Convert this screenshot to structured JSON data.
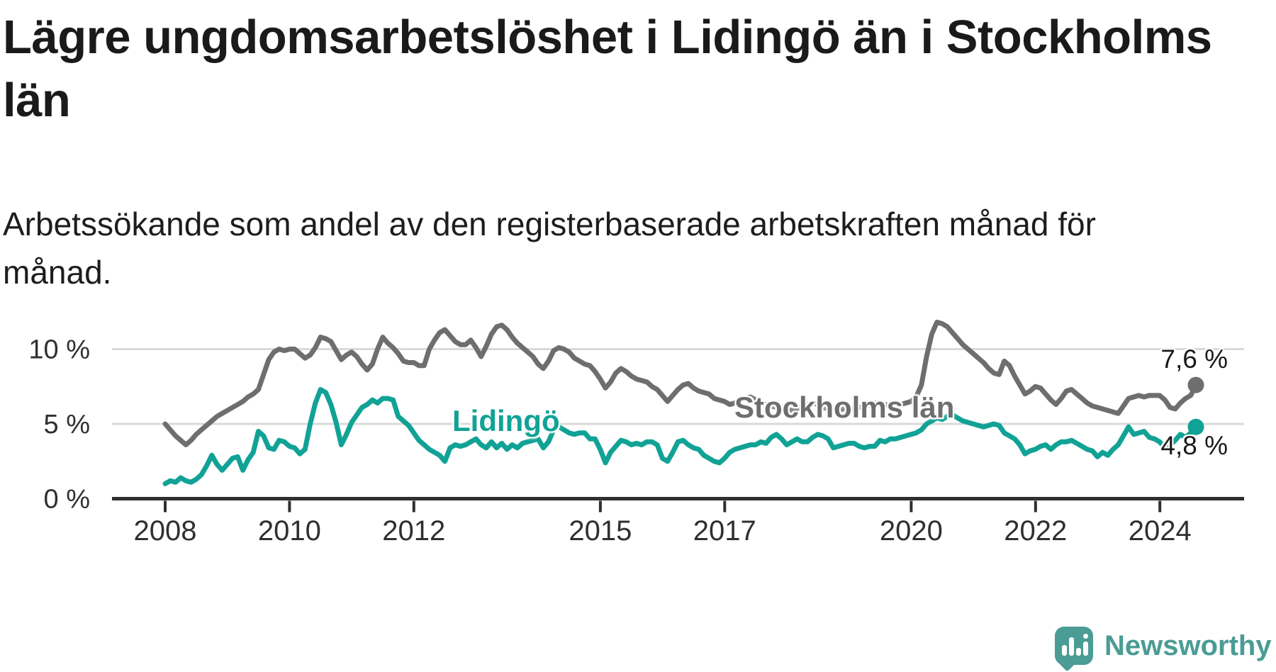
{
  "header": {
    "title": "Lägre ungdomsarbetslöshet i Lidingö än i Stockholms län",
    "subtitle": "Arbetssökande som andel av den registerbaserade arbetskraften månad för månad."
  },
  "chart_data": {
    "type": "line",
    "title": "Lägre ungdomsarbetslöshet i Lidingö än i Stockholms län",
    "subtitle": "Arbetssökande som andel av den registerbaserade arbetskraften månad för månad.",
    "x_unit": "month",
    "x_range": [
      "2008-01",
      "2024-08"
    ],
    "ylim": [
      0,
      12.5
    ],
    "grid": "horizontal",
    "legend": "inline-labels",
    "y_tick_values": [
      0,
      5,
      10
    ],
    "y_tick_labels": [
      "0 %",
      "5 %",
      "10 %"
    ],
    "x_tick_years": [
      2008,
      2010,
      2012,
      2015,
      2017,
      2020,
      2022,
      2024
    ],
    "series": [
      {
        "name": "Stockholms län",
        "color": "#6e6e6e",
        "end_label": "7,6 %",
        "end_value": 7.6,
        "values": [
          5.0,
          4.6,
          4.2,
          3.9,
          3.6,
          3.9,
          4.3,
          4.6,
          4.9,
          5.2,
          5.5,
          5.7,
          5.9,
          6.1,
          6.3,
          6.5,
          6.8,
          7.0,
          7.3,
          8.3,
          9.3,
          9.8,
          10.0,
          9.9,
          10.0,
          10.0,
          9.7,
          9.4,
          9.6,
          10.1,
          10.8,
          10.7,
          10.5,
          9.9,
          9.3,
          9.6,
          9.8,
          9.5,
          9.0,
          8.6,
          9.0,
          10.0,
          10.8,
          10.4,
          10.1,
          9.7,
          9.2,
          9.1,
          9.1,
          8.9,
          8.9,
          10.0,
          10.6,
          11.1,
          11.3,
          10.9,
          10.5,
          10.3,
          10.3,
          10.6,
          10.1,
          9.5,
          10.2,
          11.0,
          11.5,
          11.6,
          11.3,
          10.8,
          10.4,
          10.1,
          9.8,
          9.5,
          9.0,
          8.7,
          9.2,
          9.9,
          10.1,
          10.0,
          9.8,
          9.4,
          9.2,
          9.0,
          8.9,
          8.5,
          8.0,
          7.4,
          7.8,
          8.4,
          8.7,
          8.5,
          8.2,
          8.0,
          7.9,
          7.8,
          7.5,
          7.3,
          6.9,
          6.5,
          6.9,
          7.3,
          7.6,
          7.7,
          7.4,
          7.2,
          7.1,
          7.0,
          6.7,
          6.6,
          6.5,
          6.3,
          6.4,
          6.6,
          6.7,
          6.8,
          6.6,
          6.4,
          6.3,
          6.2,
          6.1,
          6.1,
          6.0,
          5.9,
          6.0,
          6.2,
          6.3,
          6.4,
          6.3,
          6.1,
          6.0,
          5.9,
          5.9,
          6.0,
          6.0,
          6.0,
          6.1,
          6.2,
          6.3,
          6.4,
          6.4,
          6.3,
          6.2,
          6.2,
          6.3,
          6.4,
          6.5,
          6.8,
          7.6,
          9.5,
          11.0,
          11.8,
          11.7,
          11.5,
          11.1,
          10.7,
          10.3,
          10.0,
          9.7,
          9.4,
          9.1,
          8.7,
          8.4,
          8.3,
          9.2,
          8.9,
          8.2,
          7.6,
          7.0,
          7.2,
          7.5,
          7.4,
          7.0,
          6.6,
          6.3,
          6.7,
          7.2,
          7.3,
          7.0,
          6.7,
          6.4,
          6.2,
          6.1,
          6.0,
          5.9,
          5.8,
          5.7,
          6.2,
          6.7,
          6.8,
          6.9,
          6.8,
          6.9,
          6.9,
          6.9,
          6.6,
          6.1,
          6.0,
          6.4,
          6.7,
          6.9,
          7.6
        ]
      },
      {
        "name": "Lidingö",
        "color": "#11a296",
        "end_label": "4,8 %",
        "end_value": 4.8,
        "values": [
          1.0,
          1.2,
          1.1,
          1.4,
          1.2,
          1.1,
          1.3,
          1.6,
          2.2,
          2.9,
          2.3,
          1.9,
          2.3,
          2.7,
          2.8,
          1.9,
          2.6,
          3.1,
          4.5,
          4.2,
          3.4,
          3.3,
          3.9,
          3.8,
          3.5,
          3.4,
          3.0,
          3.3,
          5.0,
          6.4,
          7.3,
          7.1,
          6.3,
          5.1,
          3.6,
          4.3,
          5.1,
          5.6,
          6.1,
          6.3,
          6.6,
          6.4,
          6.7,
          6.7,
          6.6,
          5.5,
          5.2,
          4.9,
          4.4,
          3.9,
          3.6,
          3.3,
          3.1,
          2.9,
          2.5,
          3.4,
          3.6,
          3.5,
          3.6,
          3.8,
          4.0,
          3.6,
          3.4,
          3.8,
          3.4,
          3.7,
          3.3,
          3.6,
          3.4,
          3.7,
          3.8,
          3.9,
          4.0,
          3.4,
          3.8,
          4.6,
          4.8,
          4.6,
          4.4,
          4.3,
          4.4,
          4.4,
          4.0,
          4.0,
          3.3,
          2.4,
          3.1,
          3.5,
          3.9,
          3.8,
          3.6,
          3.7,
          3.6,
          3.8,
          3.8,
          3.6,
          2.7,
          2.5,
          3.1,
          3.8,
          3.9,
          3.6,
          3.4,
          3.3,
          2.9,
          2.7,
          2.5,
          2.4,
          2.7,
          3.1,
          3.3,
          3.4,
          3.5,
          3.6,
          3.6,
          3.8,
          3.7,
          4.1,
          4.3,
          4.0,
          3.6,
          3.8,
          4.0,
          3.8,
          3.8,
          4.1,
          4.3,
          4.2,
          4.0,
          3.4,
          3.5,
          3.6,
          3.7,
          3.7,
          3.5,
          3.4,
          3.5,
          3.5,
          3.9,
          3.8,
          4.0,
          4.0,
          4.1,
          4.2,
          4.3,
          4.4,
          4.6,
          5.0,
          5.2,
          5.4,
          5.3,
          5.5,
          5.6,
          5.4,
          5.2,
          5.1,
          5.0,
          4.9,
          4.8,
          4.9,
          5.0,
          4.9,
          4.4,
          4.2,
          4.0,
          3.6,
          3.0,
          3.2,
          3.3,
          3.5,
          3.6,
          3.3,
          3.6,
          3.8,
          3.8,
          3.9,
          3.7,
          3.5,
          3.3,
          3.2,
          2.8,
          3.1,
          2.9,
          3.3,
          3.6,
          4.2,
          4.8,
          4.3,
          4.4,
          4.5,
          4.1,
          4.0,
          3.8,
          3.4,
          3.6,
          3.9,
          4.3,
          4.1,
          4.4,
          4.8
        ]
      }
    ]
  },
  "colors": {
    "background": "#ffffff",
    "axis": "#2f2f2f",
    "gridline": "#d9d9d9",
    "title_text": "#1a1a1a",
    "stockholm_gray": "#6e6e6e",
    "lidingo_teal": "#11a296",
    "logo_teal": "#4a9c94"
  },
  "logo": {
    "text": "Newsworthy"
  }
}
